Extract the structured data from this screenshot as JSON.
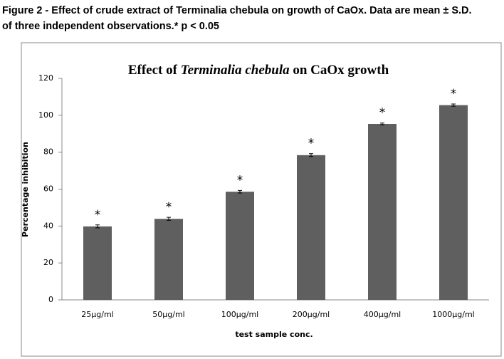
{
  "caption": [
    "Figure 2 - Effect of crude extract of Terminalia chebula on growth of CaOx. Data are mean ±  S.D.",
    "of three  independent observations.* p < 0.05"
  ],
  "chart_data": {
    "type": "bar",
    "title": [
      "Effect of ",
      "Terminalia chebula",
      " on CaOx growth"
    ],
    "x_label": "test sample conc.",
    "y_label": "Percentage inhibition",
    "categories": [
      "25µg/ml",
      "50µg/ml",
      "100µg/ml",
      "200µg/ml",
      "400µg/ml",
      "1000µg/ml"
    ],
    "values": [
      39.8,
      43.9,
      58.6,
      78.4,
      95.3,
      105.5
    ],
    "errors": [
      0.8,
      0.8,
      0.7,
      0.8,
      0.5,
      0.6
    ],
    "annotations": [
      "*",
      "*",
      "*",
      "*",
      "*",
      "*"
    ],
    "color": "#5f5f5f",
    "ylim": [
      0,
      120
    ],
    "yticks": [
      0,
      20,
      40,
      60,
      80,
      100,
      120
    ],
    "grid": false
  }
}
